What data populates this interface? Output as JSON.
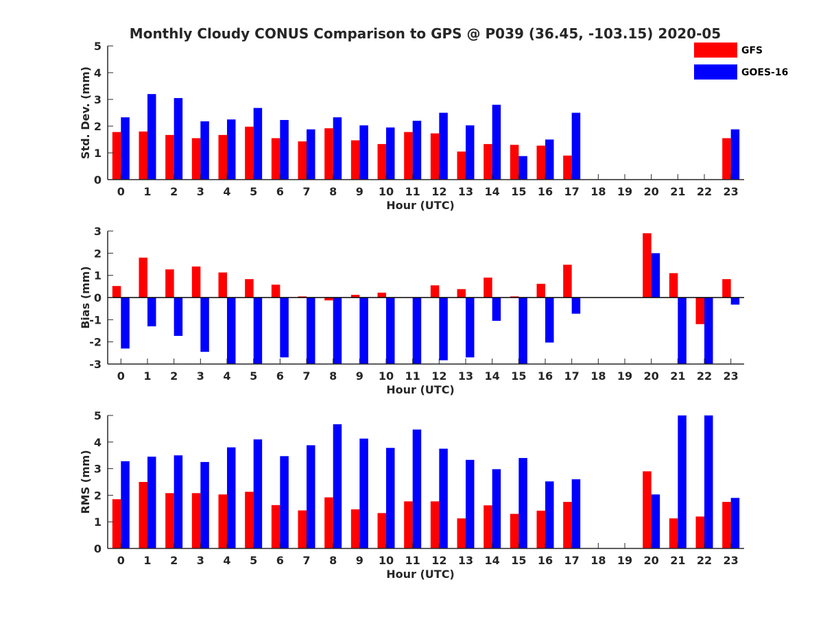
{
  "title": "Monthly Cloudy CONUS Comparison to GPS @ P039 (36.45, -103.15) 2020-05",
  "legend": {
    "placement": "top-right",
    "items": [
      {
        "name": "GFS",
        "color": "#ff0000"
      },
      {
        "name": "GOES-16",
        "color": "#0000ff"
      }
    ]
  },
  "chart_data": [
    {
      "type": "bar",
      "xlabel": "Hour (UTC)",
      "ylabel": "Std. Dev. (mm)",
      "ylim": [
        0,
        5
      ],
      "yticks": [
        0,
        1,
        2,
        3,
        4,
        5
      ],
      "categories": [
        "0",
        "1",
        "2",
        "3",
        "4",
        "5",
        "6",
        "7",
        "8",
        "9",
        "10",
        "11",
        "12",
        "13",
        "14",
        "15",
        "16",
        "17",
        "18",
        "19",
        "20",
        "21",
        "22",
        "23"
      ],
      "series": [
        {
          "name": "GFS",
          "color": "#ff0000",
          "values": [
            1.78,
            1.8,
            1.67,
            1.55,
            1.67,
            1.98,
            1.55,
            1.43,
            1.92,
            1.47,
            1.33,
            1.78,
            1.73,
            1.05,
            1.33,
            1.3,
            1.27,
            0.9,
            null,
            null,
            null,
            null,
            null,
            1.55
          ]
        },
        {
          "name": "GOES-16",
          "color": "#0000ff",
          "values": [
            2.33,
            3.2,
            3.05,
            2.18,
            2.25,
            2.68,
            2.23,
            1.88,
            2.33,
            2.03,
            1.95,
            2.2,
            2.5,
            2.03,
            2.8,
            0.88,
            1.5,
            2.5,
            null,
            null,
            null,
            null,
            null,
            1.88
          ]
        }
      ]
    },
    {
      "type": "bar",
      "xlabel": "Hour (UTC)",
      "ylabel": "Bias (mm)",
      "ylim": [
        -3,
        3
      ],
      "yticks": [
        -3,
        -2,
        -1,
        0,
        1,
        2,
        3
      ],
      "categories": [
        "0",
        "1",
        "2",
        "3",
        "4",
        "5",
        "6",
        "7",
        "8",
        "9",
        "10",
        "11",
        "12",
        "13",
        "14",
        "15",
        "16",
        "17",
        "18",
        "19",
        "20",
        "21",
        "22",
        "23"
      ],
      "series": [
        {
          "name": "GFS",
          "color": "#ff0000",
          "values": [
            0.52,
            1.8,
            1.27,
            1.4,
            1.13,
            0.83,
            0.58,
            0.05,
            -0.13,
            0.12,
            0.22,
            0.0,
            0.55,
            0.38,
            0.9,
            0.05,
            0.62,
            1.48,
            null,
            null,
            2.9,
            1.1,
            -1.2,
            0.83
          ]
        },
        {
          "name": "GOES-16",
          "color": "#0000ff",
          "values": [
            -2.3,
            -1.3,
            -1.73,
            -2.45,
            -3.0,
            -3.0,
            -2.7,
            -3.0,
            -3.0,
            -3.0,
            -3.0,
            -3.0,
            -2.83,
            -2.7,
            -1.05,
            -3.0,
            -2.03,
            -0.73,
            null,
            null,
            2.0,
            -3.0,
            -3.0,
            -0.32
          ]
        }
      ]
    },
    {
      "type": "bar",
      "xlabel": "Hour (UTC)",
      "ylabel": "RMS (mm)",
      "ylim": [
        0,
        5
      ],
      "yticks": [
        0,
        1,
        2,
        3,
        4,
        5
      ],
      "categories": [
        "0",
        "1",
        "2",
        "3",
        "4",
        "5",
        "6",
        "7",
        "8",
        "9",
        "10",
        "11",
        "12",
        "13",
        "14",
        "15",
        "16",
        "17",
        "18",
        "19",
        "20",
        "21",
        "22",
        "23"
      ],
      "series": [
        {
          "name": "GFS",
          "color": "#ff0000",
          "values": [
            1.85,
            2.5,
            2.08,
            2.08,
            2.03,
            2.13,
            1.63,
            1.43,
            1.92,
            1.47,
            1.33,
            1.77,
            1.77,
            1.13,
            1.62,
            1.3,
            1.42,
            1.75,
            null,
            null,
            2.9,
            1.13,
            1.2,
            1.75
          ]
        },
        {
          "name": "GOES-16",
          "color": "#0000ff",
          "values": [
            3.28,
            3.45,
            3.5,
            3.25,
            3.8,
            4.1,
            3.47,
            3.88,
            4.67,
            4.13,
            3.78,
            4.47,
            3.75,
            3.33,
            2.98,
            3.4,
            2.52,
            2.6,
            null,
            null,
            2.03,
            5.0,
            5.0,
            1.9
          ]
        }
      ]
    }
  ]
}
